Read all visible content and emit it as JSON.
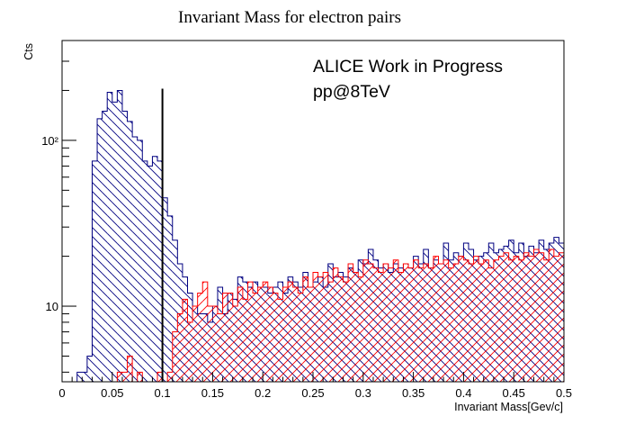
{
  "chart_data": {
    "type": "histogram",
    "title": "Invariant Mass for electron pairs",
    "xlabel": "Invariant Mass[Gev/c]",
    "ylabel": "Cts",
    "xlim": [
      0,
      0.5
    ],
    "ylim": [
      3.5,
      400
    ],
    "yscale": "log",
    "grid": false,
    "x_ticks": [
      0,
      0.05,
      0.1,
      0.15,
      0.2,
      0.25,
      0.3,
      0.35,
      0.4,
      0.45,
      0.5
    ],
    "x_tick_labels": [
      "0",
      "0.05",
      "0.1",
      "0.15",
      "0.2",
      "0.25",
      "0.3",
      "0.35",
      "0.4",
      "0.45",
      "0.5"
    ],
    "y_ticks": [
      10,
      100
    ],
    "y_tick_labels": [
      "10",
      "10²"
    ],
    "annotations": [
      "ALICE Work in Progress",
      "pp@8TeV"
    ],
    "vertical_line": {
      "x": 0.1,
      "ymin": 3.5,
      "ymax": 205,
      "color": "#000000"
    },
    "bin_edges_start": 0,
    "bin_width": 0.005,
    "series": [
      {
        "color": "#000080",
        "values": [
          3,
          3,
          3,
          4,
          4,
          5,
          75,
          135,
          150,
          195,
          170,
          200,
          150,
          130,
          105,
          100,
          75,
          70,
          80,
          75,
          45,
          35,
          25,
          18,
          15,
          12,
          10,
          9,
          9,
          8,
          10,
          13,
          9,
          12,
          11,
          15,
          14,
          13,
          14,
          13,
          13,
          12,
          13,
          14,
          12,
          15,
          14,
          13,
          16,
          13,
          14,
          15,
          13,
          18,
          15,
          16,
          15,
          17,
          16,
          19,
          18,
          22,
          19,
          17,
          18,
          16,
          18,
          17,
          18,
          17,
          20,
          18,
          22,
          17,
          19,
          18,
          24,
          19,
          21,
          20,
          24,
          22,
          19,
          20,
          21,
          24,
          21,
          22,
          23,
          25,
          21,
          24,
          20,
          23,
          21,
          25,
          22,
          24,
          26,
          24,
          22,
          26,
          24,
          21,
          25,
          28,
          23,
          26,
          22,
          24,
          27,
          24,
          29,
          26,
          23,
          25,
          27,
          24,
          28,
          26
        ]
      },
      {
        "color": "#ff0000",
        "values": [
          3,
          3,
          3,
          3,
          3,
          3,
          3,
          3,
          3,
          3,
          3,
          4,
          4,
          5,
          3,
          4,
          3,
          3,
          3,
          4,
          3,
          4,
          7,
          9,
          11,
          8,
          10,
          12,
          14,
          10,
          10,
          9,
          12,
          12,
          10,
          13,
          11,
          14,
          12,
          13,
          14,
          13,
          12,
          11,
          13,
          14,
          13,
          12,
          15,
          13,
          16,
          15,
          16,
          14,
          17,
          15,
          14,
          18,
          16,
          15,
          19,
          18,
          17,
          16,
          18,
          17,
          19,
          16,
          18,
          17,
          19,
          17,
          18,
          17,
          20,
          18,
          19,
          17,
          18,
          20,
          19,
          18,
          20,
          18,
          19,
          17,
          19,
          20,
          21,
          19,
          20,
          19,
          21,
          20,
          22,
          21,
          19,
          22,
          20,
          21,
          23,
          21,
          20,
          22,
          21,
          22,
          21,
          23,
          22,
          23,
          22,
          24,
          21,
          23,
          22,
          24,
          23,
          22,
          25,
          24
        ]
      }
    ]
  }
}
